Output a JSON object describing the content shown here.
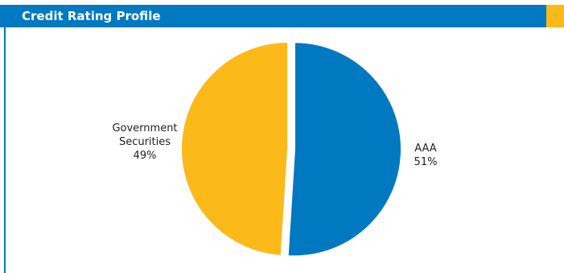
{
  "header": {
    "title": "Credit Rating Profile"
  },
  "colors": {
    "header_bar": "#0079c1",
    "header_accent": "#fbb91a",
    "frame_rule": "#0079c1"
  },
  "chart_data": {
    "type": "pie",
    "title": "Credit Rating Profile",
    "slices": [
      {
        "label": "AAA",
        "value": 51,
        "value_label": "51%",
        "color": "#0079c1",
        "exploded": true
      },
      {
        "label": "Government Securities",
        "label_lines": [
          "Government",
          "Securities"
        ],
        "value": 49,
        "value_label": "49%",
        "color": "#fbb91a",
        "exploded": false
      }
    ],
    "legend": "none"
  }
}
